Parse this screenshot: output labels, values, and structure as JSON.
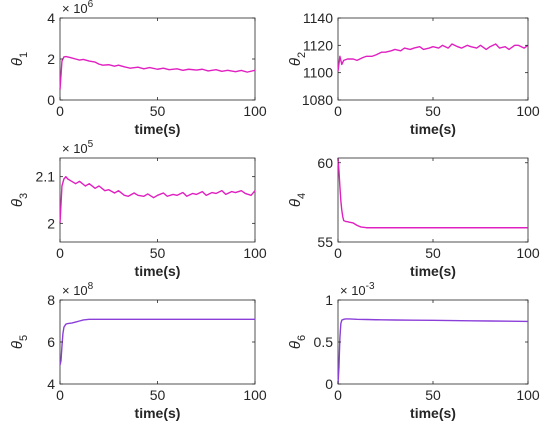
{
  "chart_data": [
    {
      "type": "line",
      "ylabel": "θ",
      "ylabel_sub": "1",
      "xlabel": "time(s)",
      "xlim": [
        0,
        100
      ],
      "ylim": [
        0,
        4
      ],
      "xticks": [
        "0",
        "50",
        "100"
      ],
      "yticks": [
        "0",
        "2",
        "4"
      ],
      "ytick_values": [
        0,
        2,
        4
      ],
      "exponent_base": "× 10",
      "exponent": "6",
      "grid": false,
      "series": [
        {
          "color": "#e020c0",
          "x": [
            0,
            0.5,
            1,
            2,
            3,
            4,
            6,
            8,
            10,
            12,
            15,
            18,
            20,
            22,
            25,
            28,
            30,
            33,
            36,
            40,
            43,
            46,
            50,
            53,
            56,
            60,
            63,
            66,
            70,
            73,
            76,
            80,
            83,
            86,
            90,
            93,
            96,
            100
          ],
          "y": [
            0.5,
            1.2,
            1.9,
            2.1,
            2.12,
            2.1,
            2.05,
            2.0,
            1.95,
            1.98,
            1.9,
            1.85,
            1.75,
            1.7,
            1.72,
            1.65,
            1.7,
            1.62,
            1.55,
            1.6,
            1.52,
            1.58,
            1.5,
            1.55,
            1.48,
            1.52,
            1.45,
            1.5,
            1.46,
            1.5,
            1.42,
            1.48,
            1.4,
            1.45,
            1.38,
            1.44,
            1.36,
            1.45
          ]
        }
      ]
    },
    {
      "type": "line",
      "ylabel": "θ",
      "ylabel_sub": "2",
      "xlabel": "time(s)",
      "xlim": [
        0,
        100
      ],
      "ylim": [
        1080,
        1140
      ],
      "xticks": [
        "0",
        "50",
        "100"
      ],
      "yticks": [
        "1080",
        "1100",
        "1120",
        "1140"
      ],
      "ytick_values": [
        1080,
        1100,
        1120,
        1140
      ],
      "grid": false,
      "series": [
        {
          "color": "#e020c0",
          "x": [
            0,
            1,
            2,
            3,
            5,
            8,
            10,
            13,
            15,
            18,
            20,
            23,
            25,
            28,
            30,
            33,
            35,
            38,
            40,
            43,
            45,
            48,
            50,
            53,
            55,
            58,
            60,
            63,
            65,
            68,
            70,
            73,
            75,
            78,
            80,
            83,
            85,
            88,
            90,
            93,
            95,
            98,
            100
          ],
          "y": [
            1101,
            1112,
            1106,
            1109,
            1110,
            1110,
            1109,
            1111,
            1112,
            1112,
            1113,
            1115,
            1115,
            1116,
            1117,
            1116,
            1118,
            1117,
            1118,
            1119,
            1117,
            1118,
            1119,
            1118,
            1120,
            1118,
            1121,
            1119,
            1118,
            1120,
            1119,
            1118,
            1120,
            1117,
            1119,
            1121,
            1118,
            1119,
            1117,
            1120,
            1120,
            1118,
            1120
          ]
        }
      ]
    },
    {
      "type": "line",
      "ylabel": "θ",
      "ylabel_sub": "3",
      "xlabel": "time(s)",
      "xlim": [
        0,
        100
      ],
      "ylim": [
        1.96,
        2.14
      ],
      "xticks": [
        "0",
        "50",
        "100"
      ],
      "yticks": [
        "2",
        "2.1"
      ],
      "ytick_values": [
        2.0,
        2.1
      ],
      "exponent_base": "× 10",
      "exponent": "5",
      "grid": false,
      "series": [
        {
          "color": "#e020c0",
          "x": [
            0,
            0.5,
            1,
            2,
            3,
            4,
            6,
            8,
            10,
            13,
            15,
            18,
            20,
            23,
            25,
            28,
            30,
            33,
            35,
            38,
            40,
            43,
            45,
            48,
            50,
            53,
            55,
            58,
            60,
            63,
            65,
            68,
            70,
            73,
            75,
            78,
            80,
            83,
            85,
            88,
            90,
            93,
            95,
            98,
            100
          ],
          "y": [
            2.0,
            2.04,
            2.08,
            2.095,
            2.1,
            2.095,
            2.09,
            2.085,
            2.09,
            2.08,
            2.085,
            2.075,
            2.08,
            2.07,
            2.072,
            2.065,
            2.07,
            2.06,
            2.058,
            2.065,
            2.06,
            2.058,
            2.063,
            2.055,
            2.06,
            2.065,
            2.058,
            2.062,
            2.06,
            2.066,
            2.058,
            2.064,
            2.062,
            2.068,
            2.06,
            2.066,
            2.064,
            2.07,
            2.062,
            2.068,
            2.066,
            2.07,
            2.064,
            2.06,
            2.07
          ]
        }
      ]
    },
    {
      "type": "line",
      "ylabel": "θ",
      "ylabel_sub": "4",
      "xlabel": "time(s)",
      "xlim": [
        0,
        100
      ],
      "ylim": [
        55,
        60.3
      ],
      "xticks": [
        "0",
        "50",
        "100"
      ],
      "yticks": [
        "55",
        "60"
      ],
      "ytick_values": [
        55,
        60
      ],
      "grid": false,
      "series": [
        {
          "color": "#e020c0",
          "x": [
            0,
            0.5,
            1,
            1.5,
            2,
            2.5,
            3,
            4,
            5,
            6,
            8,
            10,
            12,
            15,
            20,
            30,
            50,
            70,
            100
          ],
          "y": [
            60.3,
            59.5,
            58.5,
            57.6,
            57.0,
            56.6,
            56.35,
            56.3,
            56.28,
            56.25,
            56.2,
            56.05,
            55.95,
            55.9,
            55.9,
            55.9,
            55.9,
            55.9,
            55.9
          ]
        }
      ]
    },
    {
      "type": "line",
      "ylabel": "θ",
      "ylabel_sub": "5",
      "xlabel": "time(s)",
      "xlim": [
        0,
        100
      ],
      "ylim": [
        4,
        8
      ],
      "xticks": [
        "0",
        "50",
        "100"
      ],
      "yticks": [
        "4",
        "6",
        "8"
      ],
      "ytick_values": [
        4,
        6,
        8
      ],
      "exponent_base": "× 10",
      "exponent": "8",
      "grid": false,
      "series": [
        {
          "color": "#8b3fd9",
          "x": [
            0,
            0.5,
            1,
            1.5,
            2,
            3,
            4,
            6,
            8,
            10,
            12,
            15,
            20,
            30,
            50,
            70,
            100
          ],
          "y": [
            4.9,
            5.1,
            5.8,
            6.4,
            6.7,
            6.85,
            6.88,
            6.9,
            6.95,
            7.0,
            7.05,
            7.08,
            7.08,
            7.08,
            7.08,
            7.08,
            7.08
          ]
        }
      ]
    },
    {
      "type": "line",
      "ylabel": "θ",
      "ylabel_sub": "6",
      "xlabel": "time(s)",
      "xlim": [
        0,
        100
      ],
      "ylim": [
        0,
        1
      ],
      "xticks": [
        "0",
        "50",
        "100"
      ],
      "yticks": [
        "0",
        "0.5",
        "1"
      ],
      "ytick_values": [
        0,
        0.5,
        1
      ],
      "exponent_base": "× 10",
      "exponent": "-3",
      "grid": false,
      "series": [
        {
          "color": "#8b3fd9",
          "x": [
            0,
            0.5,
            1,
            1.5,
            2,
            3,
            4,
            6,
            10,
            15,
            20,
            30,
            40,
            50,
            60,
            70,
            80,
            90,
            100
          ],
          "y": [
            0.0,
            0.2,
            0.55,
            0.72,
            0.76,
            0.77,
            0.775,
            0.775,
            0.77,
            0.768,
            0.765,
            0.762,
            0.76,
            0.758,
            0.755,
            0.752,
            0.75,
            0.748,
            0.745
          ]
        }
      ]
    }
  ]
}
